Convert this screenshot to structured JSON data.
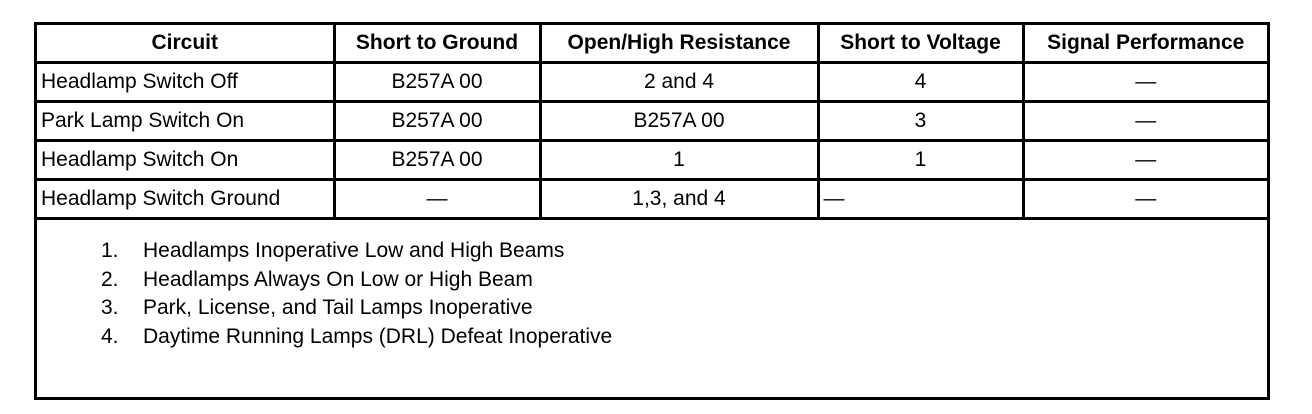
{
  "table": {
    "headers": [
      "Circuit",
      "Short to Ground",
      "Open/High Resistance",
      "Short to Voltage",
      "Signal Performance"
    ],
    "rows": [
      [
        "Headlamp Switch Off",
        "B257A 00",
        "2 and 4",
        "4",
        "—"
      ],
      [
        "Park Lamp Switch On",
        "B257A 00",
        "B257A 00",
        "3",
        "—"
      ],
      [
        "Headlamp Switch On",
        "B257A 00",
        "1",
        "1",
        "—"
      ],
      [
        "Headlamp Switch Ground",
        "—",
        "1,3, and 4",
        "—",
        "—"
      ]
    ]
  },
  "notes": [
    {
      "num": "1.",
      "text": "Headlamps Inoperative Low and High Beams"
    },
    {
      "num": "2.",
      "text": "Headlamps Always On Low or High Beam"
    },
    {
      "num": "3.",
      "text": "Park, License, and Tail Lamps Inoperative"
    },
    {
      "num": "4.",
      "text": "Daytime Running Lamps (DRL) Defeat Inoperative"
    }
  ]
}
